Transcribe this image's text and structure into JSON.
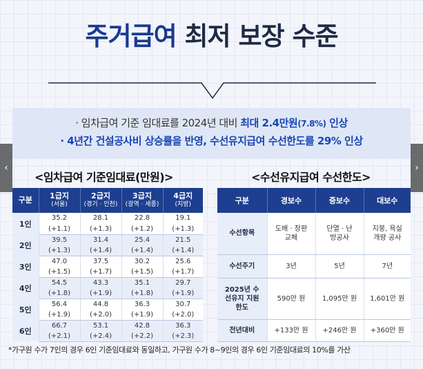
{
  "title": {
    "part1": "주거급여",
    "part2": "최저 보장 수준"
  },
  "summary": {
    "line1_pre": "· 임차급여 기준 임대료를 2024년 대비 ",
    "line1_highlight": "최대 2.4만원",
    "line1_pct": "(7.8%)",
    "line1_post": " 인상",
    "line2": "· 4년간 건설공사비 상승률을 반영, 수선유지급여 수선한도를 29% 인상"
  },
  "rent_table": {
    "title": "<임차급여 기준임대료(만원)>",
    "headers": [
      {
        "label": "구분",
        "sub": ""
      },
      {
        "label": "1급지",
        "sub": "(서울)"
      },
      {
        "label": "2급지",
        "sub": "(경기 · 인천)"
      },
      {
        "label": "3급지",
        "sub": "(광역 · 세종)"
      },
      {
        "label": "4급지",
        "sub": "(지방)"
      }
    ],
    "rows": [
      {
        "label": "1인",
        "values": [
          "35.2",
          "28.1",
          "22.8",
          "19.1"
        ],
        "deltas": [
          "(+1.1)",
          "(+1.3)",
          "(+1.2)",
          "(+1.3)"
        ]
      },
      {
        "label": "2인",
        "values": [
          "39.5",
          "31.4",
          "25.4",
          "21.5"
        ],
        "deltas": [
          "(+1.3)",
          "(+1.4)",
          "(+1.4)",
          "(+1.4)"
        ]
      },
      {
        "label": "3인",
        "values": [
          "47.0",
          "37.5",
          "30.2",
          "25.6"
        ],
        "deltas": [
          "(+1.5)",
          "(+1.7)",
          "(+1.5)",
          "(+1.7)"
        ]
      },
      {
        "label": "4인",
        "values": [
          "54.5",
          "43.3",
          "35.1",
          "29.7"
        ],
        "deltas": [
          "(+1.8)",
          "(+1.9)",
          "(+1.8)",
          "(+1.9)"
        ]
      },
      {
        "label": "5인",
        "values": [
          "56.4",
          "44.8",
          "36.3",
          "30.7"
        ],
        "deltas": [
          "(+1.9)",
          "(+2.0)",
          "(+1.9)",
          "(+2.0)"
        ]
      },
      {
        "label": "6인",
        "values": [
          "66.7",
          "53.1",
          "42.8",
          "36.3"
        ],
        "deltas": [
          "(+2.1)",
          "(+2.4)",
          "(+2.2)",
          "(+2.3)"
        ]
      }
    ]
  },
  "repair_table": {
    "title": "<수선유지급여 수선한도>",
    "headers": [
      "구분",
      "경보수",
      "중보수",
      "대보수"
    ],
    "rows": [
      {
        "label": "수선항목",
        "values": [
          "도배 · 장판교체",
          "단열 · 난방공사",
          "지붕, 욕실 개량 공사"
        ]
      },
      {
        "label": "수선주기",
        "values": [
          "3년",
          "5년",
          "7년"
        ]
      },
      {
        "label": "2025년 수선유지 지원한도",
        "values": [
          "590만 원",
          "1,095만 원",
          "1,601만 원"
        ]
      },
      {
        "label": "전년대비",
        "values": [
          "+133만 원",
          "+246만 원",
          "+360만 원"
        ]
      }
    ]
  },
  "footnote": "*가구원 수가 7인의 경우 6인 기준임대료와 동일하고, 가구원 수가 8~9인의 경우 6인 기준임대료의 10%를 가산",
  "nav": {
    "prev": "‹",
    "next": "›"
  },
  "colors": {
    "accent": "#1e3f8f",
    "highlight": "#1a46b5",
    "title_dark": "#1d2a44"
  }
}
